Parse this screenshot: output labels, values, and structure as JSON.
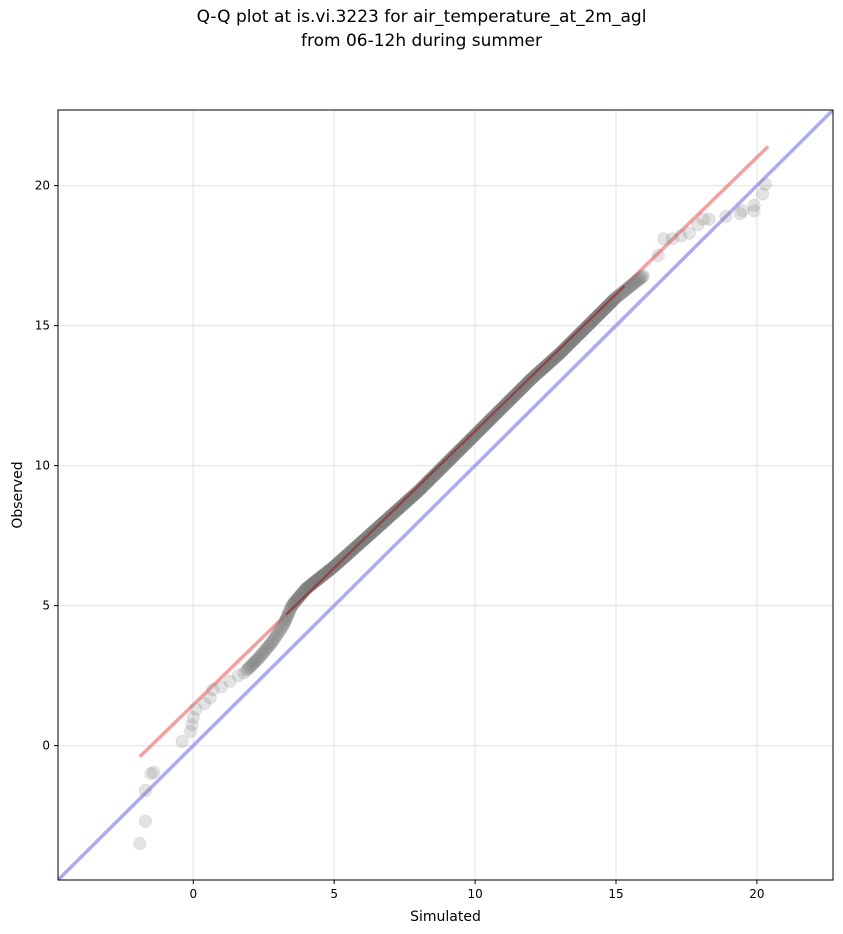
{
  "chart_data": {
    "type": "scatter",
    "title_line1": "Q-Q plot at is.vi.3223 for air_temperature_at_2m_agl",
    "title_line2": "from 06-12h during summer",
    "xlabel": "Simulated",
    "ylabel": "Observed",
    "xlim": [
      -4.8,
      22.7
    ],
    "ylim": [
      -4.8,
      22.7
    ],
    "xticks": [
      0,
      5,
      10,
      15,
      20
    ],
    "yticks": [
      0,
      5,
      10,
      15,
      20
    ],
    "grid": true,
    "colors": {
      "points": "#808080",
      "fit_line": "#f08080",
      "identity_line": "#8888ee"
    },
    "fit_line": {
      "x": [
        -1.9,
        20.4
      ],
      "y": [
        -0.4,
        21.4
      ]
    },
    "identity_line": {
      "x": [
        -4.8,
        22.7
      ],
      "y": [
        -4.8,
        22.7
      ]
    },
    "outlier_points": [
      {
        "x": -1.9,
        "y": -3.5
      },
      {
        "x": -1.7,
        "y": -2.7
      },
      {
        "x": -1.7,
        "y": -1.6
      },
      {
        "x": -1.5,
        "y": -1.0
      },
      {
        "x": -1.4,
        "y": -0.95
      },
      {
        "x": -0.4,
        "y": 0.15
      },
      {
        "x": -0.1,
        "y": 0.5
      },
      {
        "x": -0.05,
        "y": 0.75
      },
      {
        "x": 0.0,
        "y": 1.0
      },
      {
        "x": 0.1,
        "y": 1.3
      },
      {
        "x": 0.4,
        "y": 1.5
      },
      {
        "x": 0.6,
        "y": 1.7
      },
      {
        "x": 0.7,
        "y": 2.0
      },
      {
        "x": 1.0,
        "y": 2.1
      },
      {
        "x": 1.3,
        "y": 2.3
      },
      {
        "x": 1.6,
        "y": 2.5
      },
      {
        "x": 1.8,
        "y": 2.6
      },
      {
        "x": 16.5,
        "y": 17.5
      },
      {
        "x": 16.7,
        "y": 18.1
      },
      {
        "x": 17.0,
        "y": 18.1
      },
      {
        "x": 17.3,
        "y": 18.2
      },
      {
        "x": 17.6,
        "y": 18.3
      },
      {
        "x": 17.9,
        "y": 18.6
      },
      {
        "x": 18.1,
        "y": 18.8
      },
      {
        "x": 18.3,
        "y": 18.8
      },
      {
        "x": 18.9,
        "y": 18.9
      },
      {
        "x": 19.4,
        "y": 19.0
      },
      {
        "x": 19.5,
        "y": 19.1
      },
      {
        "x": 19.9,
        "y": 19.1
      },
      {
        "x": 19.9,
        "y": 19.3
      },
      {
        "x": 20.2,
        "y": 19.7
      },
      {
        "x": 20.3,
        "y": 20.05
      }
    ],
    "dense_curve": {
      "x": [
        1.9,
        2.3,
        2.8,
        3.2,
        3.5,
        4.0,
        5.0,
        6.0,
        7.0,
        8.0,
        9.0,
        10.0,
        11.0,
        12.0,
        13.0,
        14.0,
        15.0,
        16.0
      ],
      "y": [
        2.7,
        3.1,
        3.7,
        4.3,
        5.0,
        5.6,
        6.4,
        7.3,
        8.2,
        9.1,
        10.1,
        11.1,
        12.1,
        13.1,
        14.0,
        15.0,
        16.0,
        16.8
      ]
    }
  }
}
